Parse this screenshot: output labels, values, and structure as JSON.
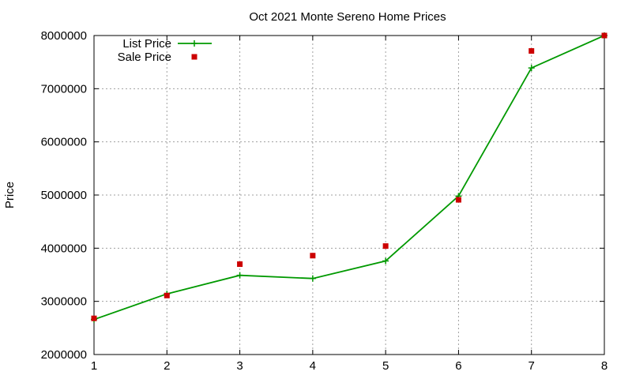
{
  "chart_data": {
    "type": "line",
    "title": "Oct 2021 Monte Sereno Home Prices",
    "xlabel": "",
    "ylabel": "Price",
    "x": [
      1,
      2,
      3,
      4,
      5,
      6,
      7,
      8
    ],
    "xlim": [
      1,
      8
    ],
    "ylim": [
      2000000,
      8000000
    ],
    "xticks": [
      "1",
      "2",
      "3",
      "4",
      "5",
      "6",
      "7",
      "8"
    ],
    "yticks": [
      "2000000",
      "3000000",
      "4000000",
      "5000000",
      "6000000",
      "7000000",
      "8000000"
    ],
    "grid": true,
    "legend_position": "top-left",
    "series": [
      {
        "name": "List Price",
        "style": "lines+crosses",
        "color": "#009900",
        "values": [
          2660000,
          3140000,
          3490000,
          3430000,
          3760000,
          4980000,
          7390000,
          8000000
        ]
      },
      {
        "name": "Sale Price",
        "style": "square-points",
        "color": "#cc0000",
        "values": [
          2680000,
          3110000,
          3700000,
          3860000,
          4040000,
          4910000,
          7710000,
          8000000
        ]
      }
    ]
  }
}
